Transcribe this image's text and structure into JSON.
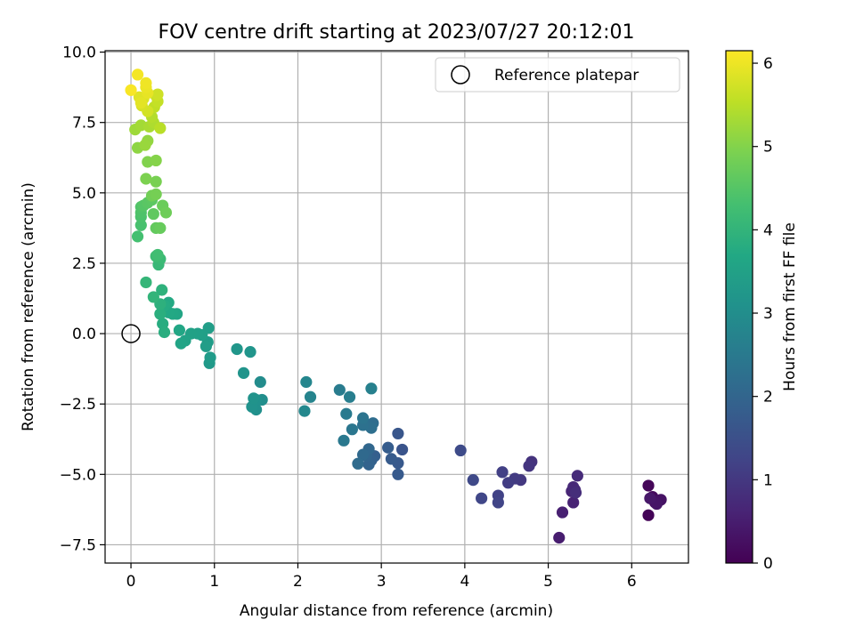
{
  "chart_data": {
    "type": "scatter",
    "title": "FOV centre drift starting at 2023/07/27 20:12:01",
    "xlabel": "Angular distance from reference (arcmin)",
    "ylabel": "Rotation from reference (arcmin)",
    "xlim": [
      -0.31,
      6.68
    ],
    "ylim": [
      -8.15,
      10.05
    ],
    "xticks": [
      0,
      1,
      2,
      3,
      4,
      5,
      6
    ],
    "yticks": [
      -7.5,
      -5.0,
      -2.5,
      0.0,
      2.5,
      5.0,
      7.5,
      10.0
    ],
    "xtick_labels": [
      "0",
      "1",
      "2",
      "3",
      "4",
      "5",
      "6"
    ],
    "ytick_labels": [
      "−7.5",
      "−5.0",
      "−2.5",
      "0.0",
      "2.5",
      "5.0",
      "7.5",
      "10.0"
    ],
    "grid": true,
    "legend": {
      "placement": "top-right",
      "entries": [
        "Reference platepar"
      ]
    },
    "colorbar": {
      "label": "Hours from first FF file",
      "range": [
        0,
        6.15
      ],
      "colormap": "viridis",
      "ticks": [
        0,
        1,
        2,
        3,
        4,
        5,
        6
      ],
      "tick_labels": [
        "0",
        "1",
        "2",
        "3",
        "4",
        "5",
        "6"
      ]
    },
    "reference_point": {
      "name": "Reference platepar",
      "x": 0,
      "y": 0
    },
    "points": [
      [
        6.2,
        -6.45,
        0.05
      ],
      [
        6.2,
        -5.4,
        0.1
      ],
      [
        6.25,
        -5.8,
        0.15
      ],
      [
        6.28,
        -6.0,
        0.2
      ],
      [
        6.32,
        -5.95,
        0.25
      ],
      [
        6.35,
        -5.9,
        0.3
      ],
      [
        6.3,
        -6.05,
        0.35
      ],
      [
        6.22,
        -5.85,
        0.4
      ],
      [
        5.13,
        -7.25,
        0.5
      ],
      [
        5.17,
        -6.35,
        0.55
      ],
      [
        5.3,
        -6.0,
        0.6
      ],
      [
        5.28,
        -5.6,
        0.65
      ],
      [
        5.32,
        -5.55,
        0.7
      ],
      [
        5.3,
        -5.45,
        0.72
      ],
      [
        5.35,
        -5.05,
        0.75
      ],
      [
        5.33,
        -5.65,
        0.8
      ],
      [
        4.8,
        -4.55,
        0.9
      ],
      [
        4.77,
        -4.7,
        0.95
      ],
      [
        4.67,
        -5.2,
        1.0
      ],
      [
        4.6,
        -5.15,
        1.05
      ],
      [
        4.52,
        -5.3,
        1.1
      ],
      [
        4.45,
        -4.92,
        1.15
      ],
      [
        4.4,
        -5.75,
        1.2
      ],
      [
        4.4,
        -6.0,
        1.25
      ],
      [
        4.2,
        -5.85,
        1.3
      ],
      [
        4.1,
        -5.2,
        1.35
      ],
      [
        3.95,
        -4.15,
        1.4
      ],
      [
        3.25,
        -4.12,
        1.6
      ],
      [
        3.2,
        -3.55,
        1.65
      ],
      [
        3.2,
        -4.6,
        1.7
      ],
      [
        3.2,
        -5.0,
        1.72
      ],
      [
        3.12,
        -4.45,
        1.75
      ],
      [
        3.08,
        -4.05,
        1.8
      ],
      [
        2.92,
        -4.35,
        1.85
      ],
      [
        2.88,
        -4.5,
        1.9
      ],
      [
        2.85,
        -4.65,
        1.95
      ],
      [
        2.82,
        -4.35,
        2.0
      ],
      [
        2.85,
        -4.1,
        2.05
      ],
      [
        2.78,
        -4.3,
        2.1
      ],
      [
        2.72,
        -4.62,
        2.15
      ],
      [
        2.9,
        -3.18,
        2.2
      ],
      [
        2.88,
        -3.35,
        2.25
      ],
      [
        2.78,
        -3.25,
        2.3
      ],
      [
        2.78,
        -3.0,
        2.35
      ],
      [
        2.65,
        -3.4,
        2.4
      ],
      [
        2.55,
        -3.8,
        2.45
      ],
      [
        2.58,
        -2.85,
        2.5
      ],
      [
        2.5,
        -2.0,
        2.55
      ],
      [
        2.62,
        -2.25,
        2.6
      ],
      [
        2.88,
        -1.95,
        2.65
      ],
      [
        2.15,
        -2.25,
        2.75
      ],
      [
        2.1,
        -1.72,
        2.8
      ],
      [
        2.08,
        -2.75,
        2.85
      ],
      [
        1.55,
        -1.72,
        2.95
      ],
      [
        1.57,
        -2.35,
        3.0
      ],
      [
        1.5,
        -2.7,
        3.05
      ],
      [
        1.5,
        -2.35,
        3.08
      ],
      [
        1.45,
        -2.6,
        3.1
      ],
      [
        1.47,
        -2.3,
        3.12
      ],
      [
        1.35,
        -1.4,
        3.15
      ],
      [
        1.43,
        -0.65,
        3.18
      ],
      [
        1.27,
        -0.55,
        3.22
      ],
      [
        0.94,
        -1.05,
        3.3
      ],
      [
        0.95,
        -0.85,
        3.33
      ],
      [
        0.92,
        -0.3,
        3.36
      ],
      [
        0.9,
        -0.45,
        3.39
      ],
      [
        0.93,
        0.2,
        3.42
      ],
      [
        0.85,
        -0.05,
        3.45
      ],
      [
        0.8,
        0.0,
        3.48
      ],
      [
        0.72,
        0.0,
        3.51
      ],
      [
        0.65,
        -0.25,
        3.54
      ],
      [
        0.6,
        -0.35,
        3.57
      ],
      [
        0.55,
        0.7,
        3.6
      ],
      [
        0.58,
        0.12,
        3.63
      ],
      [
        0.5,
        0.7,
        3.66
      ],
      [
        0.45,
        0.75,
        3.7
      ],
      [
        0.45,
        1.1,
        3.73
      ],
      [
        0.4,
        1.0,
        3.76
      ],
      [
        0.38,
        0.35,
        3.8
      ],
      [
        0.4,
        0.05,
        3.83
      ],
      [
        0.35,
        0.7,
        3.86
      ],
      [
        0.35,
        1.05,
        3.9
      ],
      [
        0.37,
        1.55,
        3.93
      ],
      [
        0.27,
        1.3,
        4.0
      ],
      [
        0.18,
        1.82,
        4.05
      ],
      [
        0.33,
        2.45,
        4.1
      ],
      [
        0.35,
        2.65,
        4.15
      ],
      [
        0.3,
        2.75,
        4.2
      ],
      [
        0.32,
        2.8,
        4.25
      ],
      [
        0.08,
        3.45,
        4.3
      ],
      [
        0.12,
        3.85,
        4.35
      ],
      [
        0.12,
        4.15,
        4.38
      ],
      [
        0.12,
        4.3,
        4.42
      ],
      [
        0.12,
        4.5,
        4.45
      ],
      [
        0.15,
        4.55,
        4.5
      ],
      [
        0.2,
        4.65,
        4.55
      ],
      [
        0.25,
        4.75,
        4.58
      ],
      [
        0.27,
        4.25,
        4.62
      ],
      [
        0.3,
        3.75,
        4.66
      ],
      [
        0.35,
        3.75,
        4.7
      ],
      [
        0.38,
        4.55,
        4.74
      ],
      [
        0.42,
        4.3,
        4.78
      ],
      [
        0.25,
        4.9,
        4.82
      ],
      [
        0.3,
        4.95,
        4.86
      ],
      [
        0.3,
        5.4,
        4.9
      ],
      [
        0.18,
        5.5,
        4.94
      ],
      [
        0.2,
        6.1,
        4.98
      ],
      [
        0.3,
        6.15,
        5.02
      ],
      [
        0.08,
        6.6,
        5.1
      ],
      [
        0.2,
        6.85,
        5.15
      ],
      [
        0.17,
        6.7,
        5.2
      ],
      [
        0.05,
        7.25,
        5.25
      ],
      [
        0.12,
        7.4,
        5.3
      ],
      [
        0.22,
        7.35,
        5.35
      ],
      [
        0.27,
        7.5,
        5.4
      ],
      [
        0.25,
        7.7,
        5.45
      ],
      [
        0.35,
        7.3,
        5.5
      ],
      [
        0.28,
        8.05,
        5.55
      ],
      [
        0.32,
        8.25,
        5.6
      ],
      [
        0.3,
        8.45,
        5.65
      ],
      [
        0.32,
        8.5,
        5.7
      ],
      [
        0.2,
        7.9,
        5.74
      ],
      [
        0.13,
        8.1,
        5.78
      ],
      [
        0.15,
        8.35,
        5.82
      ],
      [
        0.1,
        8.4,
        5.86
      ],
      [
        0.12,
        8.2,
        5.9
      ],
      [
        0.2,
        8.55,
        5.94
      ],
      [
        0.18,
        8.75,
        5.98
      ],
      [
        0.18,
        8.9,
        6.02
      ],
      [
        0.08,
        9.2,
        6.06
      ],
      [
        0.0,
        8.65,
        6.1
      ]
    ]
  }
}
